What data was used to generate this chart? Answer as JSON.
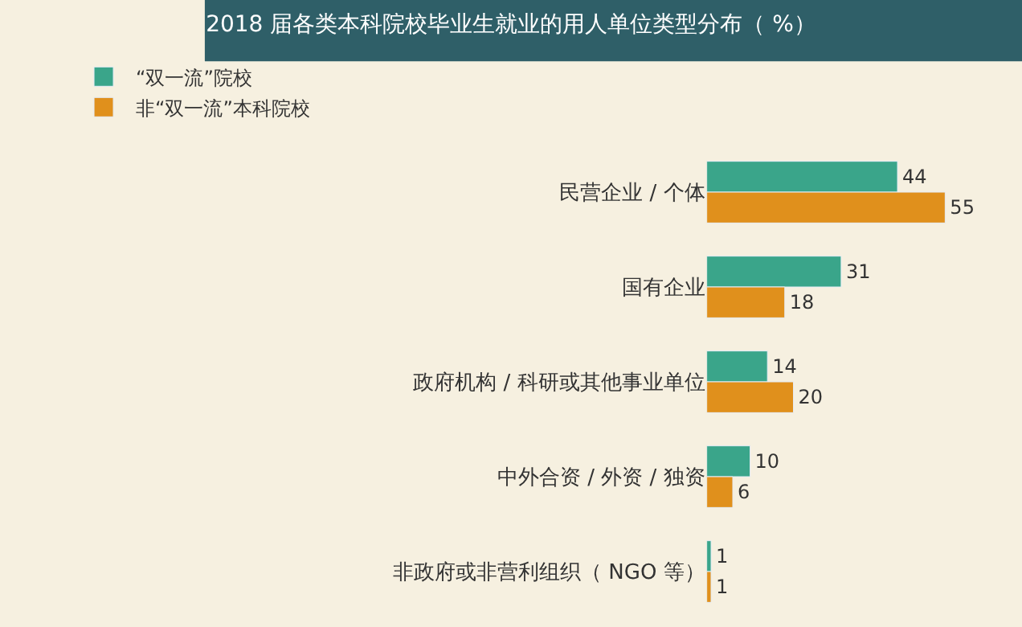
{
  "chart_data": {
    "type": "bar",
    "orientation": "horizontal",
    "title": "2018 届各类本科院校毕业生就业的用人单位类型分布（ %）",
    "categories": [
      "民营企业 / 个体",
      "国有企业",
      "政府机构 / 科研或其他事业单位",
      "中外合资 / 外资 / 独资",
      "非政府或非营利组织（ NGO 等）"
    ],
    "series": [
      {
        "name": "“双一流”院校",
        "color": "#3aa58a",
        "values": [
          44,
          31,
          14,
          10,
          1
        ]
      },
      {
        "name": "非“双一流”本科院校",
        "color": "#e0901c",
        "values": [
          55,
          18,
          20,
          6,
          1
        ]
      }
    ],
    "data_labels": true,
    "legend": "top left"
  }
}
